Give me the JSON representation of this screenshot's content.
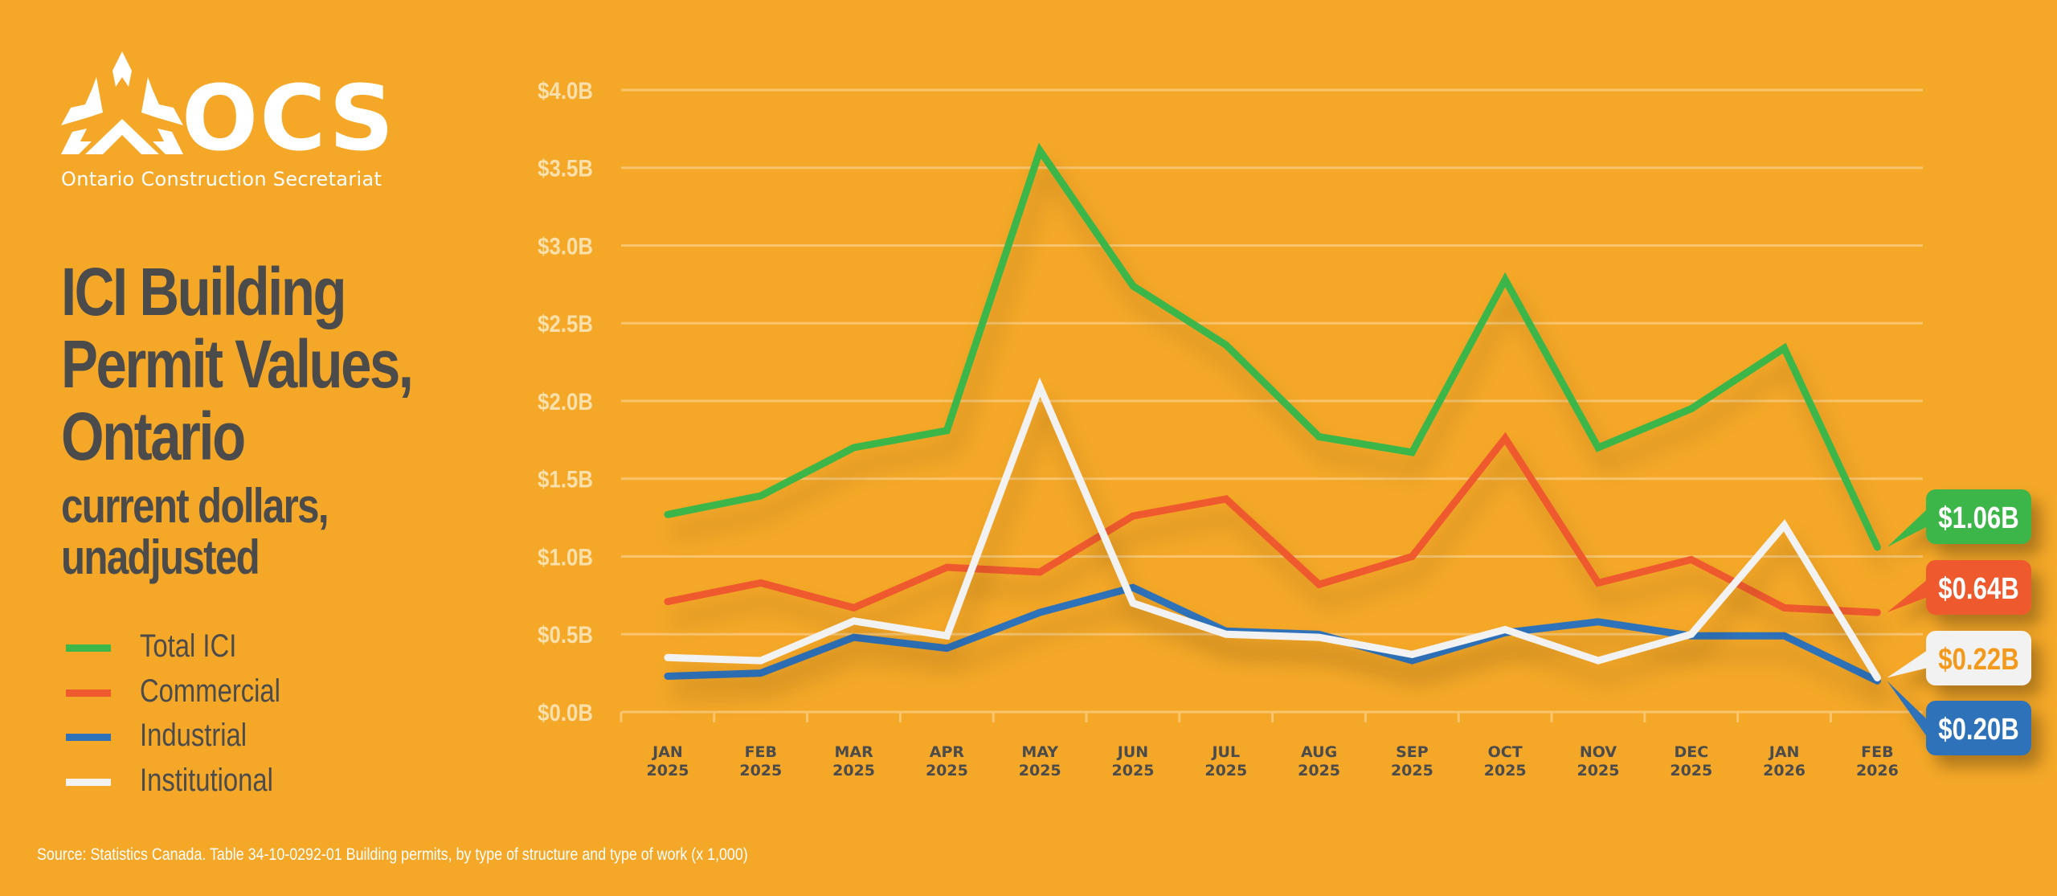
{
  "brand": {
    "logo_text": "OCS",
    "org_name": "Ontario Construction Secretariat",
    "logo_icon": "ocs-triangle-mark-icon"
  },
  "title": {
    "lines": [
      "ICI Building",
      "Permit Values,",
      "Ontario"
    ],
    "subtitle_lines": [
      "current dollars,",
      "unadjusted"
    ]
  },
  "legend": [
    {
      "label": "Total ICI",
      "color": "#3DB64A"
    },
    {
      "label": "Commercial",
      "color": "#EE5A2E"
    },
    {
      "label": "Industrial",
      "color": "#2F72BA"
    },
    {
      "label": "Institutional",
      "color": "#F2F2F2"
    }
  ],
  "source": "Source: Statistics Canada. Table 34-10-0292-01  Building permits, by type of structure and type of work (x 1,000)",
  "colors": {
    "background": "#F5A827",
    "text_dark": "#4B4B4B",
    "axis_label": "#FBE0AC",
    "gridline": "#F9C978"
  },
  "chart_data": {
    "type": "line",
    "title": "ICI Building Permit Values, Ontario — current dollars, unadjusted",
    "xlabel": "",
    "ylabel": "",
    "ylim": [
      0,
      4.0
    ],
    "y_unit": "billions CAD",
    "grid": true,
    "legend_placement": "left",
    "y_ticks": [
      "$0.0B",
      "$0.5B",
      "$1.0B",
      "$1.5B",
      "$2.0B",
      "$2.5B",
      "$3.0B",
      "$3.5B",
      "$4.0B"
    ],
    "y_tick_values": [
      0,
      0.5,
      1.0,
      1.5,
      2.0,
      2.5,
      3.0,
      3.5,
      4.0
    ],
    "categories": [
      {
        "month": "JAN",
        "year": "2025"
      },
      {
        "month": "FEB",
        "year": "2025"
      },
      {
        "month": "MAR",
        "year": "2025"
      },
      {
        "month": "APR",
        "year": "2025"
      },
      {
        "month": "MAY",
        "year": "2025"
      },
      {
        "month": "JUN",
        "year": "2025"
      },
      {
        "month": "JUL",
        "year": "2025"
      },
      {
        "month": "AUG",
        "year": "2025"
      },
      {
        "month": "SEP",
        "year": "2025"
      },
      {
        "month": "OCT",
        "year": "2025"
      },
      {
        "month": "NOV",
        "year": "2025"
      },
      {
        "month": "DEC",
        "year": "2025"
      },
      {
        "month": "JAN",
        "year": "2026"
      },
      {
        "month": "FEB",
        "year": "2026"
      }
    ],
    "series": [
      {
        "name": "Total ICI",
        "color": "#3DB64A",
        "values": [
          1.27,
          1.39,
          1.7,
          1.81,
          3.61,
          2.74,
          2.36,
          1.77,
          1.67,
          2.78,
          1.7,
          1.95,
          2.34,
          1.06
        ],
        "end_label": "$1.06B",
        "end_label_text_color": "#FFFFFF"
      },
      {
        "name": "Commercial",
        "color": "#EE5A2E",
        "values": [
          0.71,
          0.83,
          0.67,
          0.93,
          0.9,
          1.26,
          1.37,
          0.82,
          1.0,
          1.76,
          0.83,
          0.98,
          0.67,
          0.64
        ],
        "end_label": "$0.64B",
        "end_label_text_color": "#FFFFFF"
      },
      {
        "name": "Industrial",
        "color": "#2F72BA",
        "values": [
          0.23,
          0.25,
          0.48,
          0.41,
          0.64,
          0.8,
          0.52,
          0.5,
          0.33,
          0.51,
          0.58,
          0.49,
          0.49,
          0.2
        ],
        "end_label": "$0.20B",
        "end_label_text_color": "#FFFFFF"
      },
      {
        "name": "Institutional",
        "color": "#F2F2F2",
        "values": [
          0.35,
          0.33,
          0.585,
          0.49,
          2.09,
          0.7,
          0.5,
          0.48,
          0.37,
          0.53,
          0.33,
          0.5,
          1.2,
          0.22
        ],
        "end_label": "$0.22B",
        "end_label_text_color": "#F39A1E"
      }
    ]
  }
}
